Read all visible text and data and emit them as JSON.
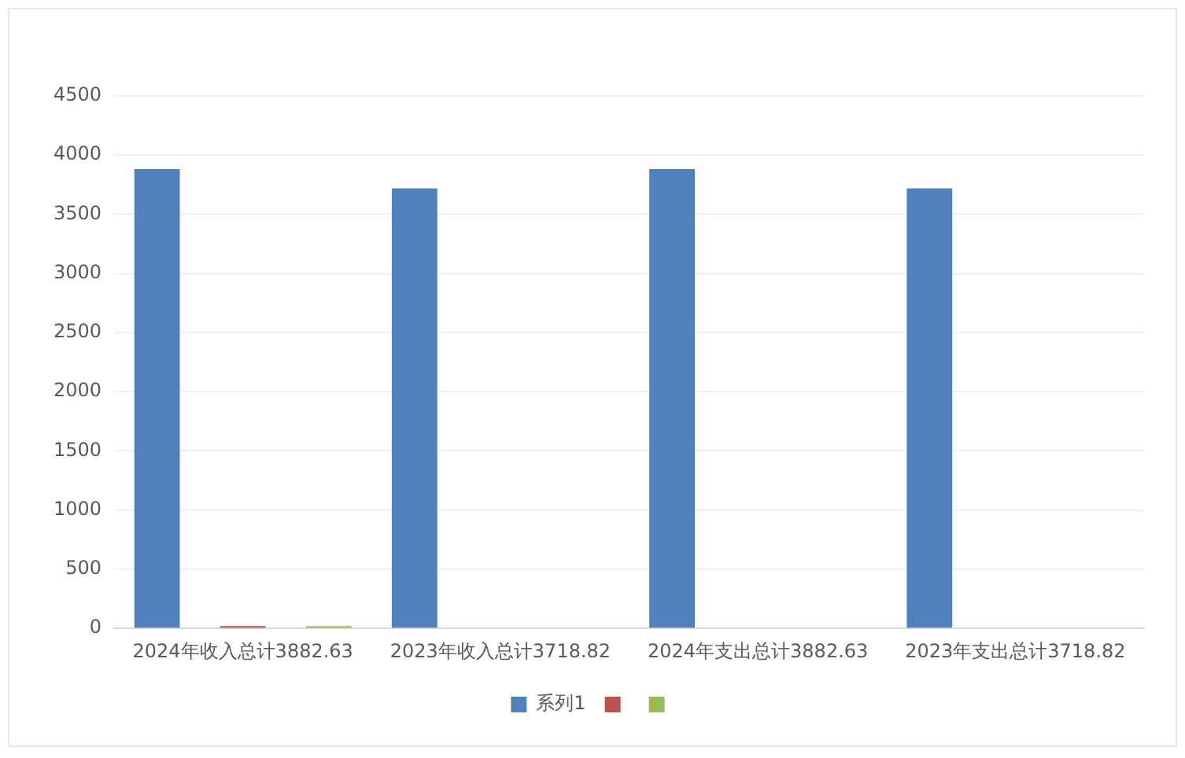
{
  "chart_data": {
    "type": "bar",
    "categories": [
      "2024年收入总计3882.63",
      "2023年收入总计3718.82",
      "2024年支出总计3882.63",
      "2023年支出总计3718.82"
    ],
    "series": [
      {
        "name": "系列1",
        "color": "#4f81bd",
        "values": [
          3882.63,
          3718.82,
          3882.63,
          3718.82
        ]
      },
      {
        "color": "#c0504d",
        "values": [
          20,
          null,
          null,
          null
        ]
      },
      {
        "color": "#9bbb59",
        "values": [
          20,
          null,
          null,
          null
        ]
      }
    ],
    "ylim": [
      0,
      4500
    ],
    "yticks": [
      0,
      500,
      1000,
      1500,
      2000,
      2500,
      3000,
      3500,
      4000,
      4500
    ],
    "grid": "y",
    "legend": "bottom"
  }
}
